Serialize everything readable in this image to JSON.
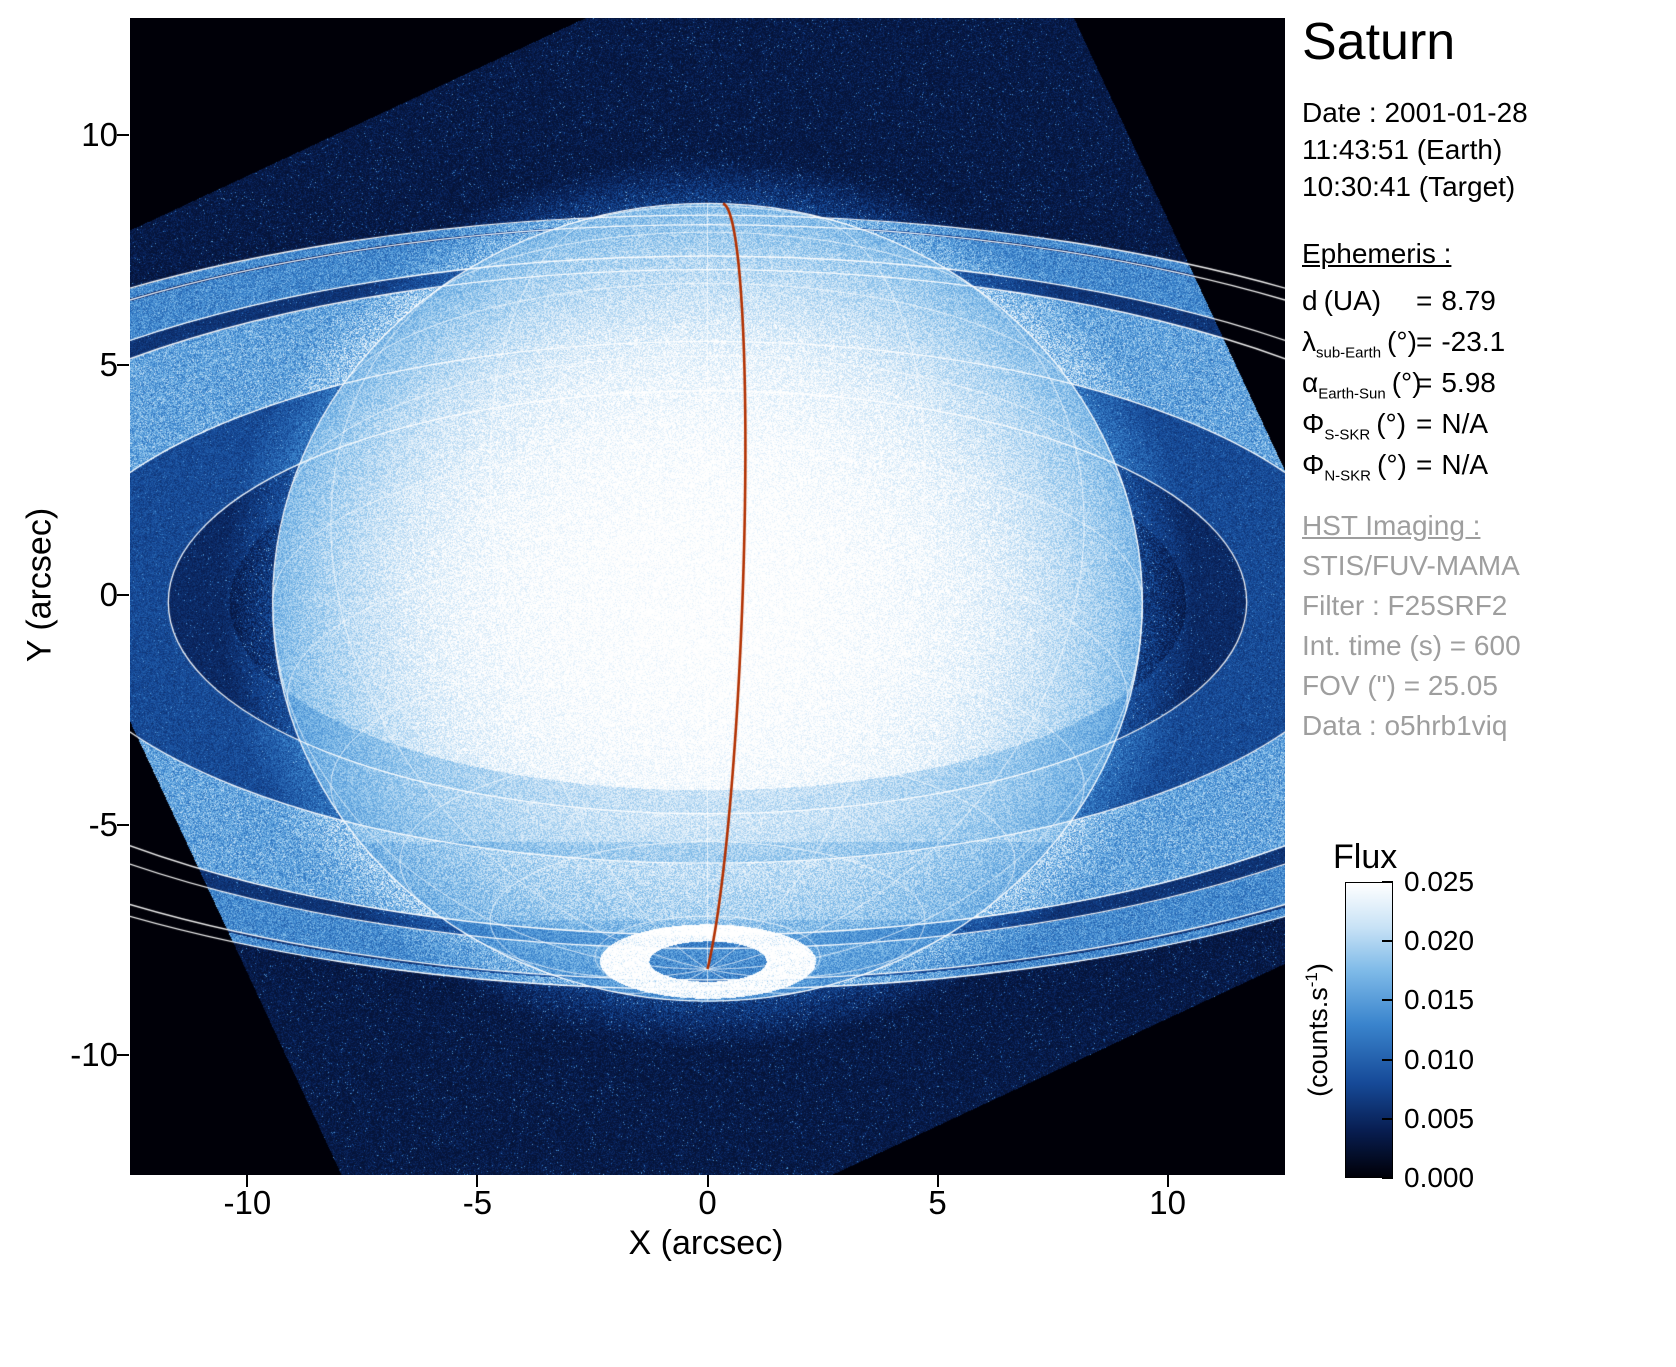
{
  "title": "Saturn",
  "date_block": {
    "line1": "Date : 2001-01-28",
    "line2": "11:43:51 (Earth)",
    "line3": "10:30:41 (Target)"
  },
  "ephemeris": {
    "heading": "Ephemeris :",
    "rows": [
      {
        "symbol": "d",
        "sub": "",
        "unit": "(UA)",
        "eq": "=",
        "value": "8.79"
      },
      {
        "symbol": "λ",
        "sub": "sub-Earth",
        "unit": "(°)",
        "eq": "=",
        "value": "-23.1"
      },
      {
        "symbol": "α",
        "sub": "Earth-Sun",
        "unit": "(°)",
        "eq": "=",
        "value": "5.98"
      },
      {
        "symbol": "Φ",
        "sub": "S-SKR",
        "unit": "(°)",
        "eq": "=",
        "value": "N/A"
      },
      {
        "symbol": "Φ",
        "sub": "N-SKR",
        "unit": "(°)",
        "eq": "=",
        "value": "N/A"
      }
    ]
  },
  "hst": {
    "heading": "HST Imaging :",
    "lines": [
      "STIS/FUV-MAMA",
      "Filter : F25SRF2",
      "Int. time (s) = 600",
      "FOV (\") = 25.05",
      "Data : o5hrb1viq"
    ]
  },
  "colorbar": {
    "title": "Flux",
    "unit_pre": "(counts.s",
    "unit_sup": "-1",
    "unit_post": ")",
    "ticks": [
      "0.025",
      "0.020",
      "0.015",
      "0.010",
      "0.005",
      "0.000"
    ]
  },
  "axes": {
    "x": {
      "label": "X (arcsec)",
      "ticks": [
        {
          "v": -10,
          "label": "-10"
        },
        {
          "v": -5,
          "label": "-5"
        },
        {
          "v": 0,
          "label": "0"
        },
        {
          "v": 5,
          "label": "5"
        },
        {
          "v": 10,
          "label": "10"
        }
      ]
    },
    "y": {
      "label": "Y (arcsec)",
      "ticks": [
        {
          "v": -10,
          "label": "-10"
        },
        {
          "v": -5,
          "label": "-5"
        },
        {
          "v": 0,
          "label": "0"
        },
        {
          "v": 5,
          "label": "5"
        },
        {
          "v": 10,
          "label": "10"
        }
      ]
    }
  },
  "chart_data": {
    "type": "heatmap",
    "title": "Saturn",
    "description": "HST STIS far-UV image of Saturn with rings, planetocentric grid overlay, central meridian line (red) and southern auroral oval",
    "xlabel": "X (arcsec)",
    "ylabel": "Y (arcsec)",
    "xlim": [
      -12.55,
      12.55
    ],
    "ylim": [
      -12.6,
      12.55
    ],
    "flux_min": 0.0,
    "flux_max": 0.025,
    "flux_units": "counts.s-1",
    "colormap": "black-blue-white",
    "detector": {
      "fov_arcsec": 25.05,
      "rotation_deg": -25
    },
    "planet": {
      "center": [
        0,
        -0.15
      ],
      "eq_radius_arcsec": 9.45,
      "proj_polar_radius_arcsec": 8.67,
      "subearth_lat_deg": -23.1
    },
    "ring_bands_rs": [
      [
        1.1,
        1.24
      ],
      [
        1.24,
        1.53
      ],
      [
        1.53,
        1.95
      ],
      [
        1.95,
        2.03
      ],
      [
        2.03,
        2.27
      ]
    ],
    "ring_outlines_rs": [
      1.24,
      1.53,
      1.95,
      2.03,
      2.214,
      2.27
    ],
    "aurora": {
      "center": [
        0,
        -7.8
      ],
      "rx": 1.8,
      "ry": 0.62
    },
    "meridian_line": {
      "longitude_deg": 5,
      "color": "#b23000"
    },
    "grid": {
      "lat_step_deg": 15,
      "lon_step_deg": 30,
      "color": "#ffffff"
    }
  }
}
